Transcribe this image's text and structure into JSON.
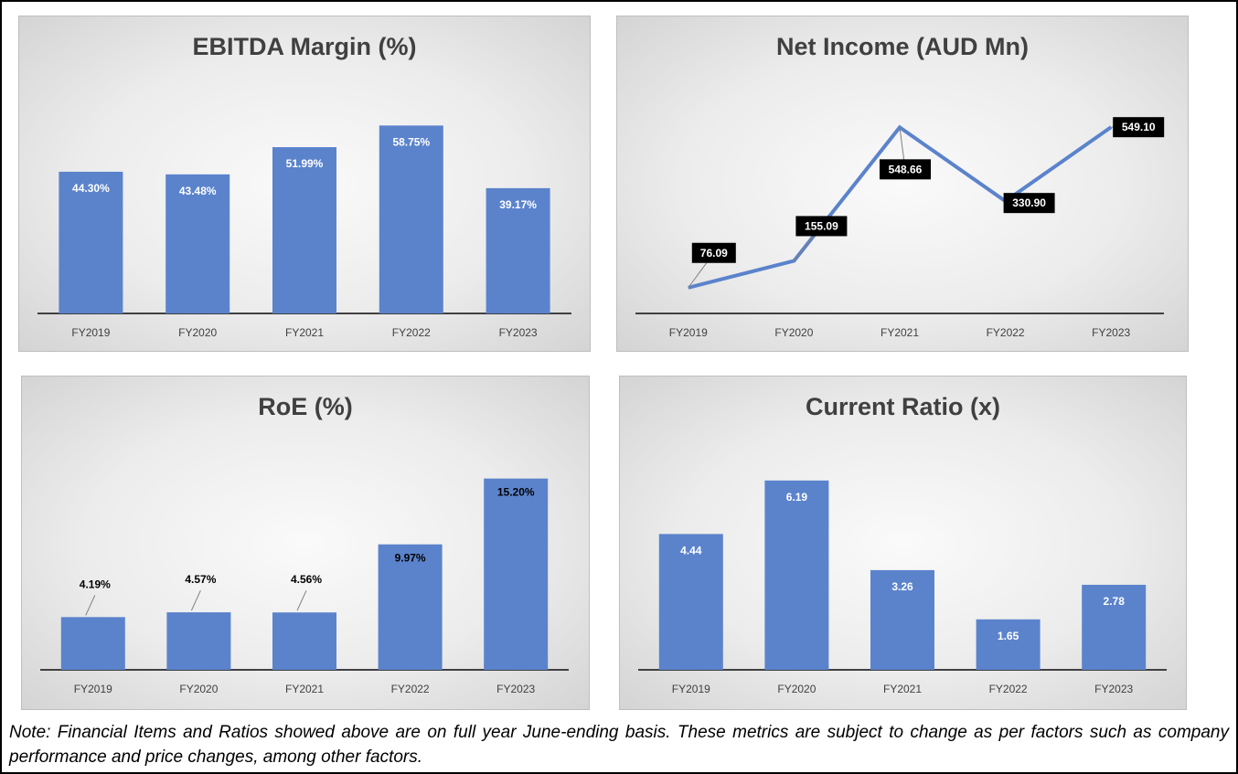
{
  "charts": [
    {
      "title": "EBITDA Margin (%)",
      "chart_data": {
        "type": "bar",
        "title": "EBITDA Margin (%)",
        "categories": [
          "FY2019",
          "FY2020",
          "FY2021",
          "FY2022",
          "FY2023"
        ],
        "values": [
          44.3,
          43.48,
          51.99,
          58.75,
          39.17
        ],
        "labels": [
          "44.30%",
          "43.48%",
          "51.99%",
          "58.75%",
          "39.17%"
        ],
        "label_position": "inside-top",
        "ylim": [
          0,
          70
        ],
        "grid": false,
        "color": "#5b83cc"
      }
    },
    {
      "title": "Net Income (AUD Mn)",
      "chart_data": {
        "type": "line",
        "title": "Net Income (AUD Mn)",
        "categories": [
          "FY2019",
          "FY2020",
          "FY2021",
          "FY2022",
          "FY2023"
        ],
        "values": [
          76.09,
          155.09,
          548.66,
          330.9,
          549.1
        ],
        "labels": [
          "76.09",
          "155.09",
          "548.66",
          "330.90",
          "549.10"
        ],
        "ylim": [
          0,
          660
        ],
        "grid": false,
        "color": "#5b83cc"
      }
    },
    {
      "title": "RoE (%)",
      "chart_data": {
        "type": "bar",
        "title": "RoE (%)",
        "categories": [
          "FY2019",
          "FY2020",
          "FY2021",
          "FY2022",
          "FY2023"
        ],
        "values": [
          4.19,
          4.57,
          4.56,
          9.97,
          15.2
        ],
        "labels": [
          "4.19%",
          "4.57%",
          "4.56%",
          "9.97%",
          "15.20%"
        ],
        "ylim": [
          0,
          17.5
        ],
        "grid": false,
        "color": "#5b83cc"
      }
    },
    {
      "title": "Current Ratio (x)",
      "chart_data": {
        "type": "bar",
        "title": "Current Ratio (x)",
        "categories": [
          "FY2019",
          "FY2020",
          "FY2021",
          "FY2022",
          "FY2023"
        ],
        "values": [
          4.44,
          6.19,
          3.26,
          1.65,
          2.78
        ],
        "labels": [
          "4.44",
          "6.19",
          "3.26",
          "1.65",
          "2.78"
        ],
        "label_position": "inside-top",
        "ylim": [
          0,
          7.2
        ],
        "grid": false,
        "color": "#5b83cc"
      }
    }
  ],
  "note": "Note: Financial Items and Ratios showed above are on full year June-ending basis. These metrics are subject to change as per factors such as company performance and price changes, among other factors."
}
